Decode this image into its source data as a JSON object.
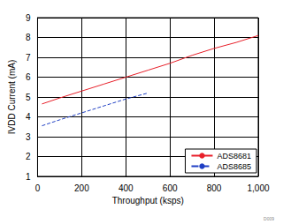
{
  "chart_data": {
    "type": "line",
    "x_label": "Throughput (ksps)",
    "y_label": "IVDD Current (mA)",
    "annotation": "D009",
    "xlim": [
      0,
      1000
    ],
    "xticks": [
      0,
      200,
      400,
      600,
      800,
      1000
    ],
    "ylim": [
      1,
      9
    ],
    "yticks": [
      1,
      2,
      3,
      4,
      5,
      6,
      7,
      8,
      9
    ],
    "grid": true,
    "legend": "bottom-right",
    "series": [
      {
        "name": "ADS8681",
        "color": "#e8202a",
        "line_style": "solid",
        "x": [
          20,
          100,
          200,
          300,
          400,
          500,
          600,
          700,
          800,
          900,
          1000
        ],
        "values": [
          4.65,
          4.95,
          5.3,
          5.65,
          6.0,
          6.35,
          6.7,
          7.1,
          7.45,
          7.75,
          8.1
        ]
      },
      {
        "name": "ADS8685",
        "color": "#1f3fc4",
        "line_style": "dashed",
        "x": [
          20,
          100,
          200,
          300,
          400,
          500
        ],
        "values": [
          3.55,
          3.85,
          4.2,
          4.55,
          4.9,
          5.2
        ]
      }
    ]
  }
}
